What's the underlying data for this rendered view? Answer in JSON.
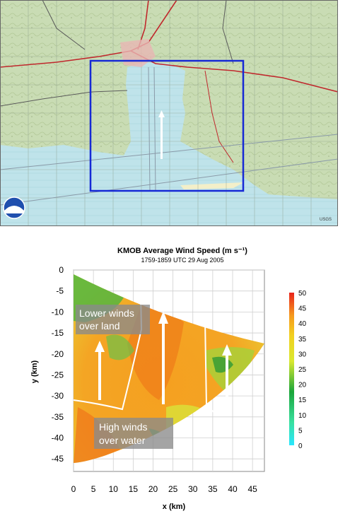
{
  "map": {
    "logo_text": "NOAA",
    "credit": "USGS"
  },
  "chart_data": {
    "type": "heatmap",
    "title": "KMOB Average Wind Speed (m s⁻¹)",
    "subtitle": "1759-1859 UTC 29 Aug 2005",
    "xlabel": "x (km)",
    "ylabel": "y (km)",
    "xlim": [
      0,
      48
    ],
    "ylim": [
      -48,
      0
    ],
    "x_ticks": [
      0,
      5,
      10,
      15,
      20,
      25,
      30,
      35,
      40,
      45
    ],
    "y_ticks": [
      0,
      -5,
      -10,
      -15,
      -20,
      -25,
      -30,
      -35,
      -40,
      -45
    ],
    "grid": true,
    "colorbar": {
      "ticks": [
        50,
        45,
        40,
        35,
        30,
        25,
        20,
        15,
        10,
        5,
        0
      ],
      "range": [
        0,
        50
      ]
    },
    "annotations": [
      {
        "text_lines": [
          "Lower winds",
          "over land"
        ]
      },
      {
        "text_lines": [
          "High winds",
          "over water"
        ]
      }
    ]
  }
}
